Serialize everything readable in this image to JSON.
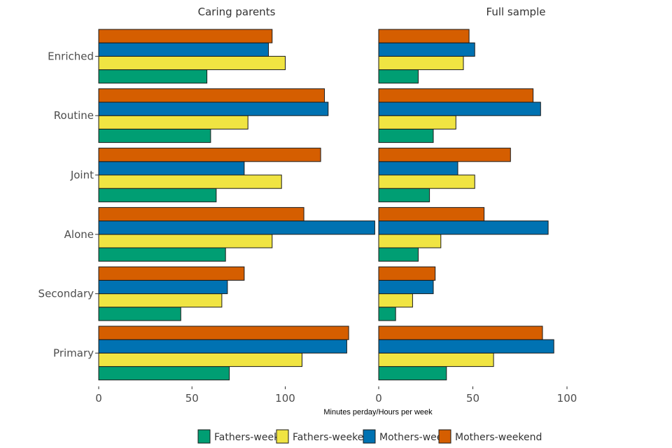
{
  "chart_data": {
    "type": "bar",
    "orientation": "horizontal",
    "xlabel": "Minutes perday/Hours per week",
    "categories": [
      "Enriched",
      "Routine",
      "Joint",
      "Alone",
      "Secondary",
      "Primary"
    ],
    "series_order_bottom_to_top": [
      "Fathers-week",
      "Fathers-weekend",
      "Mothers-week",
      "Mothers-weekend"
    ],
    "legend": {
      "position": "bottom",
      "entries": [
        {
          "name": "Fathers-week",
          "color": "#009E73"
        },
        {
          "name": "Fathers-weekend",
          "color": "#F0E442"
        },
        {
          "name": "Mothers-week",
          "color": "#0072B2"
        },
        {
          "name": "Mothers-weekend",
          "color": "#D55E00"
        }
      ]
    },
    "panels": [
      {
        "title": "Caring parents",
        "xlim": [
          0,
          148
        ],
        "xticks": [
          0,
          50,
          100
        ],
        "series": [
          {
            "name": "Fathers-week",
            "values": [
              58,
              60,
              63,
              68,
              44,
              70
            ]
          },
          {
            "name": "Fathers-weekend",
            "values": [
              100,
              80,
              98,
              93,
              66,
              109
            ]
          },
          {
            "name": "Mothers-week",
            "values": [
              91,
              123,
              78,
              148,
              69,
              133
            ]
          },
          {
            "name": "Mothers-weekend",
            "values": [
              93,
              121,
              119,
              110,
              78,
              134
            ]
          }
        ]
      },
      {
        "title": "Full sample",
        "xlim": [
          0,
          108
        ],
        "xticks": [
          0,
          50,
          100
        ],
        "series": [
          {
            "name": "Fathers-week",
            "values": [
              21,
              29,
              27,
              21,
              9,
              36
            ]
          },
          {
            "name": "Fathers-weekend",
            "values": [
              45,
              41,
              51,
              33,
              18,
              61
            ]
          },
          {
            "name": "Mothers-week",
            "values": [
              51,
              86,
              42,
              90,
              29,
              93
            ]
          },
          {
            "name": "Mothers-weekend",
            "values": [
              48,
              82,
              70,
              56,
              30,
              87
            ]
          }
        ]
      }
    ]
  }
}
